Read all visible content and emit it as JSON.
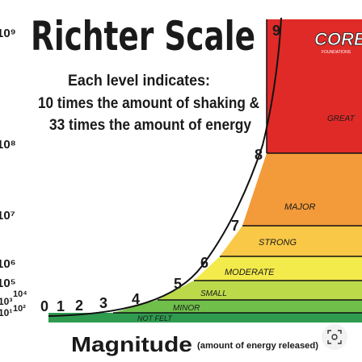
{
  "title": "Richter Scale",
  "description_lines": [
    "Each level indicates:",
    "10 times the amount of shaking &",
    "33 times the amount of energy"
  ],
  "axis": {
    "label_main": "Magnitude",
    "label_note": "(amount of energy released)"
  },
  "left_axis_labels": [
    "10⁹",
    "10⁸",
    "10⁷",
    "10⁶",
    "10⁵",
    "10⁴",
    "10³",
    "10²",
    "10¹"
  ],
  "magnitudes": [
    "0",
    "1",
    "2",
    "3",
    "4",
    "5",
    "6",
    "7",
    "8",
    "9"
  ],
  "bands": [
    {
      "label": "NOT FELT",
      "color": "#2e9b4f"
    },
    {
      "label": "MINOR",
      "color": "#6fbf4a"
    },
    {
      "label": "SMALL",
      "color": "#bcd94a"
    },
    {
      "label": "MODERATE",
      "color": "#f3ea4b"
    },
    {
      "label": "STRONG",
      "color": "#f9c846"
    },
    {
      "label": "MAJOR",
      "color": "#f39a3a"
    },
    {
      "label": "GREAT",
      "color": "#e02a27"
    }
  ],
  "logo": {
    "text": "CORE",
    "subtext": "FOUNDATIONS"
  },
  "colors": {
    "curve": "#111111",
    "ink": "#1a1a1a"
  }
}
